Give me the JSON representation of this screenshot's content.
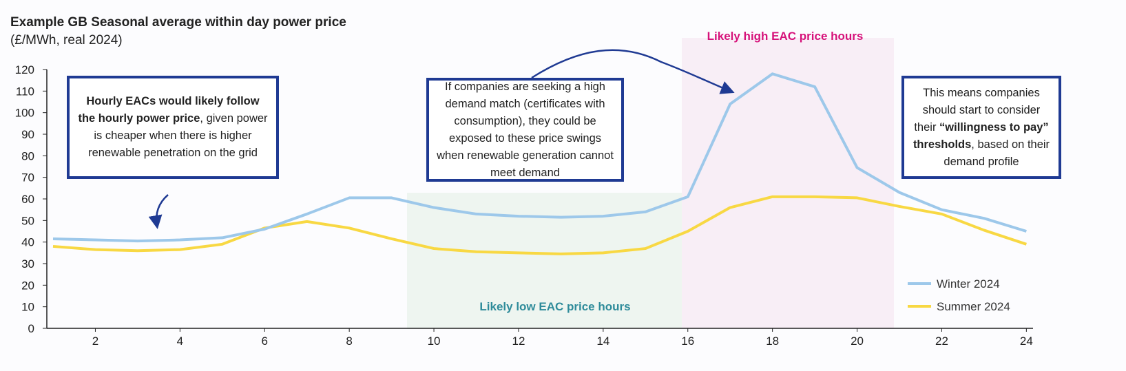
{
  "chart_data": {
    "type": "line",
    "title": "Example GB Seasonal average within day power price",
    "subtitle": "(£/MWh, real 2024)",
    "xlabel": "",
    "ylabel": "",
    "x": [
      1,
      2,
      3,
      4,
      5,
      6,
      7,
      8,
      9,
      10,
      11,
      12,
      13,
      14,
      15,
      16,
      17,
      18,
      19,
      20,
      21,
      22,
      23,
      24
    ],
    "xticks": [
      2,
      4,
      6,
      8,
      10,
      12,
      14,
      16,
      18,
      20,
      22,
      24
    ],
    "yticks": [
      0,
      10,
      20,
      30,
      40,
      50,
      60,
      70,
      80,
      90,
      100,
      110,
      120
    ],
    "ylim": [
      0,
      120
    ],
    "grid": false,
    "legend": "bottom-right",
    "series": [
      {
        "name": "Winter 2024",
        "color": "#9dc8ea",
        "values": [
          41.5,
          41,
          40.5,
          41,
          42,
          46,
          53,
          60.5,
          60.5,
          56,
          53,
          52,
          51.5,
          52,
          54,
          61,
          104,
          118,
          112,
          74.5,
          63,
          55,
          51,
          45
        ]
      },
      {
        "name": "Summer 2024",
        "color": "#f8d843",
        "values": [
          38,
          36.5,
          36,
          36.5,
          39,
          46.5,
          49.5,
          46.5,
          41.5,
          37,
          35.5,
          35,
          34.5,
          35,
          37,
          45,
          56,
          61,
          61,
          60.5,
          56.5,
          53,
          45.5,
          39
        ]
      }
    ],
    "regions": [
      {
        "label": "Likely low EAC price hours",
        "color": "#2e8b9a",
        "fill": "#eef5f0"
      },
      {
        "label": "Likely high EAC price hours",
        "color": "#d6127a",
        "fill": "#f8eef6"
      }
    ],
    "annotations": {
      "box1": {
        "bold": "Hourly EACs would likely follow the hourly power price",
        "text": ", given power is cheaper when there is higher renewable penetration on the grid"
      },
      "box2": {
        "text": "If companies are seeking a high demand match (certificates with consumption), they could be exposed to these price swings when renewable generation cannot meet demand"
      },
      "box3": {
        "pre": "This means companies should start to consider their ",
        "bold": "“willingness to pay” thresholds",
        "post": ", based on their demand profile"
      }
    }
  }
}
